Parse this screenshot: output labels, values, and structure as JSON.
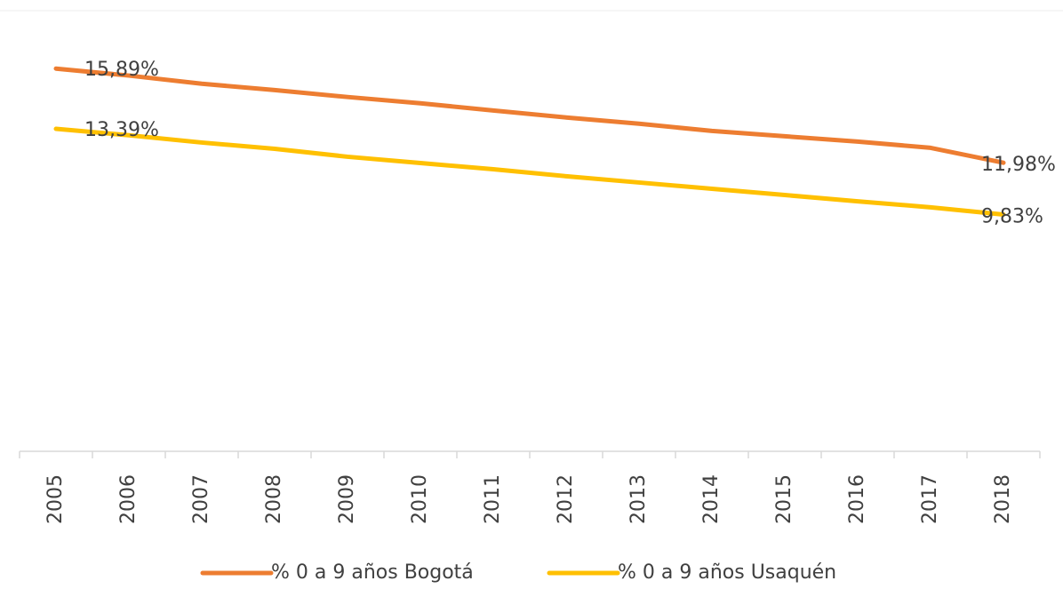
{
  "chart_data": {
    "type": "line",
    "categories": [
      "2005",
      "2006",
      "2007",
      "2008",
      "2009",
      "2010",
      "2011",
      "2012",
      "2013",
      "2014",
      "2015",
      "2016",
      "2017",
      "2018"
    ],
    "series": [
      {
        "name": "% 0 a 9 años Bogotá",
        "color": "#ED7D31",
        "values": [
          15.89,
          15.6,
          15.26,
          15.0,
          14.71,
          14.45,
          14.15,
          13.86,
          13.6,
          13.3,
          13.08,
          12.86,
          12.6,
          11.98
        ],
        "value_labels": [
          "15,89%",
          null,
          null,
          null,
          null,
          null,
          null,
          null,
          null,
          null,
          null,
          null,
          null,
          "11,98%"
        ]
      },
      {
        "name": "% 0 a 9 años Usaquén",
        "color": "#FFC000",
        "values": [
          13.39,
          13.12,
          12.82,
          12.56,
          12.23,
          11.97,
          11.71,
          11.42,
          11.16,
          10.9,
          10.64,
          10.38,
          10.13,
          9.83
        ],
        "value_labels": [
          "13,39%",
          null,
          null,
          null,
          null,
          null,
          null,
          null,
          null,
          null,
          null,
          null,
          null,
          "9,83%"
        ]
      }
    ],
    "ylim": [
      0,
      18
    ]
  }
}
